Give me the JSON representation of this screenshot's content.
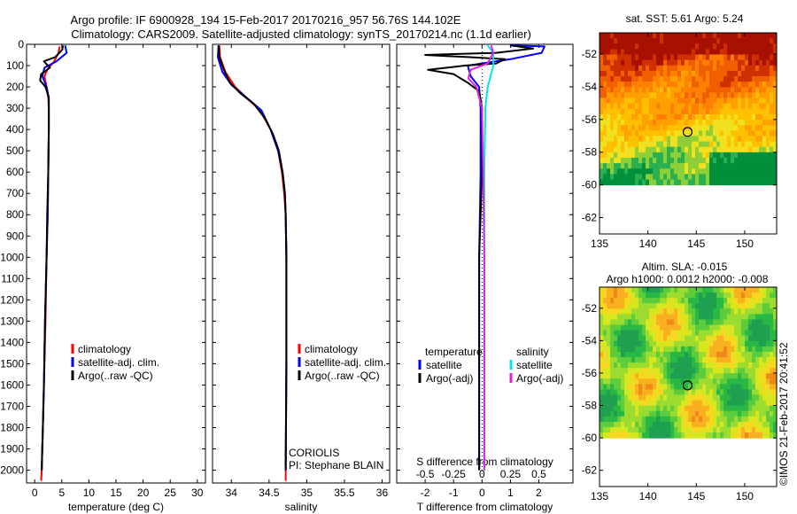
{
  "header": {
    "line1": "Argo profile: IF 6900928_194 15-Feb-2017 20170216_957 56.76S 144.102E",
    "line2": "Climatology: CARS2009. Satellite-adjusted climatology: synTS_20170214.nc (1.1d earlier)"
  },
  "colors": {
    "climatology": "#ff0000",
    "satellite": "#0000ff",
    "argo": "#000000",
    "sal_satellite": "#00e5e5",
    "sal_argo": "#e020e0"
  },
  "depth_axis": {
    "range": [
      0,
      2060
    ],
    "ticks": [
      0,
      100,
      200,
      300,
      400,
      500,
      600,
      700,
      800,
      900,
      1000,
      1100,
      1200,
      1300,
      1400,
      1500,
      1600,
      1700,
      1800,
      1900,
      2000
    ]
  },
  "chart_data": [
    {
      "type": "line",
      "name": "temperature-profile",
      "xlabel": "temperature (deg C)",
      "xlim": [
        -1.5,
        31.5
      ],
      "xticks": [
        0,
        5,
        10,
        15,
        20,
        25,
        30
      ],
      "ylim": [
        0,
        2060
      ],
      "legend": [
        "climatology",
        "satellite-adj. clim.",
        "Argo(..raw -QC)"
      ],
      "legend_position": "lower-left",
      "series": [
        {
          "name": "climatology",
          "color": "#ff0000",
          "points": [
            [
              4.6,
              10
            ],
            [
              4.4,
              40
            ],
            [
              3.6,
              80
            ],
            [
              2.3,
              120
            ],
            [
              1.8,
              150
            ],
            [
              2.2,
              200
            ],
            [
              2.5,
              250
            ],
            [
              2.6,
              300
            ],
            [
              2.6,
              400
            ],
            [
              2.5,
              600
            ],
            [
              2.4,
              800
            ],
            [
              2.2,
              1000
            ],
            [
              2.0,
              1300
            ],
            [
              1.7,
              1600
            ],
            [
              1.5,
              1800
            ],
            [
              1.3,
              2000
            ],
            [
              1.2,
              2050
            ]
          ]
        },
        {
          "name": "satellite-adj. clim.",
          "color": "#0000ff",
          "points": [
            [
              5.6,
              5
            ],
            [
              5.9,
              40
            ],
            [
              4.0,
              80
            ],
            [
              1.8,
              110
            ],
            [
              1.4,
              150
            ],
            [
              2.2,
              200
            ],
            [
              2.6,
              250
            ],
            [
              2.6,
              400
            ],
            [
              2.5,
              600
            ],
            [
              2.4,
              800
            ],
            [
              2.2,
              1000
            ],
            [
              1.9,
              1300
            ],
            [
              1.7,
              1600
            ],
            [
              1.5,
              1800
            ],
            [
              1.3,
              2000
            ]
          ]
        },
        {
          "name": "Argo(..raw -QC)",
          "color": "#000000",
          "points": [
            [
              5.2,
              5
            ],
            [
              5.1,
              25
            ],
            [
              3.8,
              60
            ],
            [
              1.7,
              80
            ],
            [
              2.8,
              110
            ],
            [
              1.2,
              140
            ],
            [
              1.0,
              170
            ],
            [
              2.0,
              200
            ],
            [
              2.6,
              250
            ],
            [
              2.6,
              400
            ],
            [
              2.5,
              600
            ],
            [
              2.3,
              800
            ],
            [
              2.2,
              1000
            ],
            [
              1.9,
              1300
            ],
            [
              1.7,
              1600
            ],
            [
              1.5,
              1800
            ],
            [
              1.3,
              2000
            ]
          ]
        }
      ]
    },
    {
      "type": "line",
      "name": "salinity-profile",
      "xlabel": "salinity",
      "xlim": [
        33.75,
        36.1
      ],
      "xticks": [
        34,
        34.5,
        35,
        35.5,
        36
      ],
      "ylim": [
        0,
        2060
      ],
      "legend": [
        "climatology",
        "satellite-adj. clim.",
        "Argo(..raw -QC)"
      ],
      "legend_position": "lower-right",
      "annotation": [
        "CORIOLIS",
        "PI: Stephane BLAIN"
      ],
      "series": [
        {
          "name": "climatology",
          "color": "#ff0000",
          "points": [
            [
              33.84,
              5
            ],
            [
              33.85,
              60
            ],
            [
              33.92,
              130
            ],
            [
              34.05,
              200
            ],
            [
              34.2,
              250
            ],
            [
              34.38,
              310
            ],
            [
              34.52,
              400
            ],
            [
              34.62,
              500
            ],
            [
              34.67,
              600
            ],
            [
              34.7,
              700
            ],
            [
              34.72,
              800
            ],
            [
              34.73,
              1000
            ],
            [
              34.73,
              1500
            ],
            [
              34.72,
              2050
            ]
          ]
        },
        {
          "name": "satellite-adj. clim.",
          "color": "#0000ff",
          "points": [
            [
              33.83,
              5
            ],
            [
              33.82,
              60
            ],
            [
              33.88,
              130
            ],
            [
              34.0,
              190
            ],
            [
              34.2,
              250
            ],
            [
              34.4,
              310
            ],
            [
              34.52,
              400
            ],
            [
              34.62,
              500
            ],
            [
              34.68,
              600
            ],
            [
              34.71,
              700
            ],
            [
              34.72,
              800
            ],
            [
              34.73,
              1000
            ],
            [
              34.73,
              1500
            ],
            [
              34.72,
              2000
            ]
          ]
        },
        {
          "name": "Argo(..raw -QC)",
          "color": "#000000",
          "points": [
            [
              33.83,
              5
            ],
            [
              33.84,
              60
            ],
            [
              33.9,
              120
            ],
            [
              33.98,
              180
            ],
            [
              34.12,
              230
            ],
            [
              34.3,
              280
            ],
            [
              34.45,
              350
            ],
            [
              34.55,
              420
            ],
            [
              34.63,
              500
            ],
            [
              34.68,
              600
            ],
            [
              34.71,
              700
            ],
            [
              34.72,
              800
            ],
            [
              34.73,
              1000
            ],
            [
              34.73,
              1500
            ],
            [
              34.72,
              2000
            ]
          ]
        }
      ]
    },
    {
      "type": "line",
      "name": "difference-profile",
      "xlabel": "T difference from climatology",
      "xlim": [
        -3,
        3.2
      ],
      "xticks": [
        -2,
        -1,
        0,
        1,
        2
      ],
      "xlabel_top": "S difference from climatology",
      "xticks_top": [
        -0.5,
        -0.25,
        0,
        0.25,
        0.5
      ],
      "ylim": [
        0,
        2060
      ],
      "legend_temperature": {
        "title": "temperature",
        "items": [
          "satellite",
          "Argo(-adj)"
        ]
      },
      "legend_salinity": {
        "title": "salinity",
        "items": [
          "satellite",
          "Argo(-adj)"
        ]
      },
      "series": [
        {
          "name": "temperature satellite",
          "color": "#0000ff",
          "points": [
            [
              1.0,
              5
            ],
            [
              2.2,
              10
            ],
            [
              2.1,
              40
            ],
            [
              1.0,
              70
            ],
            [
              -0.5,
              100
            ],
            [
              -0.4,
              150
            ],
            [
              -0.1,
              200
            ],
            [
              -0.05,
              300
            ],
            [
              -0.05,
              600
            ],
            [
              -0.1,
              1000
            ],
            [
              -0.1,
              1500
            ],
            [
              -0.1,
              2000
            ]
          ]
        },
        {
          "name": "temperature Argo(-adj)",
          "color": "#000000",
          "points": [
            [
              1.0,
              5
            ],
            [
              1.8,
              20
            ],
            [
              0.5,
              40
            ],
            [
              -2.0,
              50
            ],
            [
              -0.5,
              60
            ],
            [
              0.8,
              70
            ],
            [
              0.5,
              90
            ],
            [
              -0.6,
              100
            ],
            [
              -1.9,
              120
            ],
            [
              -1.0,
              140
            ],
            [
              -0.5,
              180
            ],
            [
              -0.1,
              220
            ],
            [
              0.0,
              300
            ],
            [
              0.0,
              600
            ],
            [
              -0.1,
              1000
            ],
            [
              -0.1,
              1500
            ],
            [
              -0.1,
              2000
            ]
          ]
        },
        {
          "name": "salinity satellite",
          "color": "#00e5e5",
          "points": [
            [
              0.05,
              5
            ],
            [
              0.1,
              40
            ],
            [
              0.1,
              100
            ],
            [
              0.05,
              200
            ],
            [
              0.03,
              300
            ],
            [
              0.02,
              600
            ],
            [
              0.02,
              1000
            ],
            [
              0.02,
              1500
            ],
            [
              0.02,
              2000
            ]
          ]
        },
        {
          "name": "salinity Argo(-adj)",
          "color": "#e020e0",
          "points": [
            [
              0.08,
              5
            ],
            [
              0.1,
              40
            ],
            [
              0.05,
              90
            ],
            [
              -0.1,
              120
            ],
            [
              -0.12,
              160
            ],
            [
              -0.05,
              200
            ],
            [
              0.0,
              300
            ],
            [
              0.01,
              600
            ],
            [
              0.02,
              1000
            ],
            [
              0.02,
              1500
            ],
            [
              0.02,
              2000
            ]
          ]
        }
      ]
    },
    {
      "type": "heatmap",
      "name": "sst-map",
      "title": "sat. SST: 5.61 Argo: 5.24",
      "xlim": [
        135,
        153.3
      ],
      "ylim": [
        -63,
        -50.7
      ],
      "xticks": [
        135,
        140,
        145,
        150
      ],
      "yticks": [
        -52,
        -54,
        -56,
        -58,
        -60,
        -62
      ],
      "data_extent_y": [
        -60,
        -50.7
      ],
      "marker": {
        "lon": 144.1,
        "lat": -56.76
      }
    },
    {
      "type": "heatmap",
      "name": "sla-map",
      "title": "Altim. SLA: -0.015",
      "subtitle": "Argo h1000: 0.0012 h2000: -0.008",
      "xlim": [
        135,
        153.3
      ],
      "ylim": [
        -63,
        -50.7
      ],
      "xticks": [
        135,
        140,
        145,
        150
      ],
      "yticks": [
        -52,
        -54,
        -56,
        -58,
        -60,
        -62
      ],
      "data_extent_y": [
        -60,
        -50.7
      ],
      "marker": {
        "lon": 144.1,
        "lat": -56.76
      }
    }
  ],
  "footer": {
    "credit": "©IMOS 21-Feb-2017 20:41:52"
  }
}
